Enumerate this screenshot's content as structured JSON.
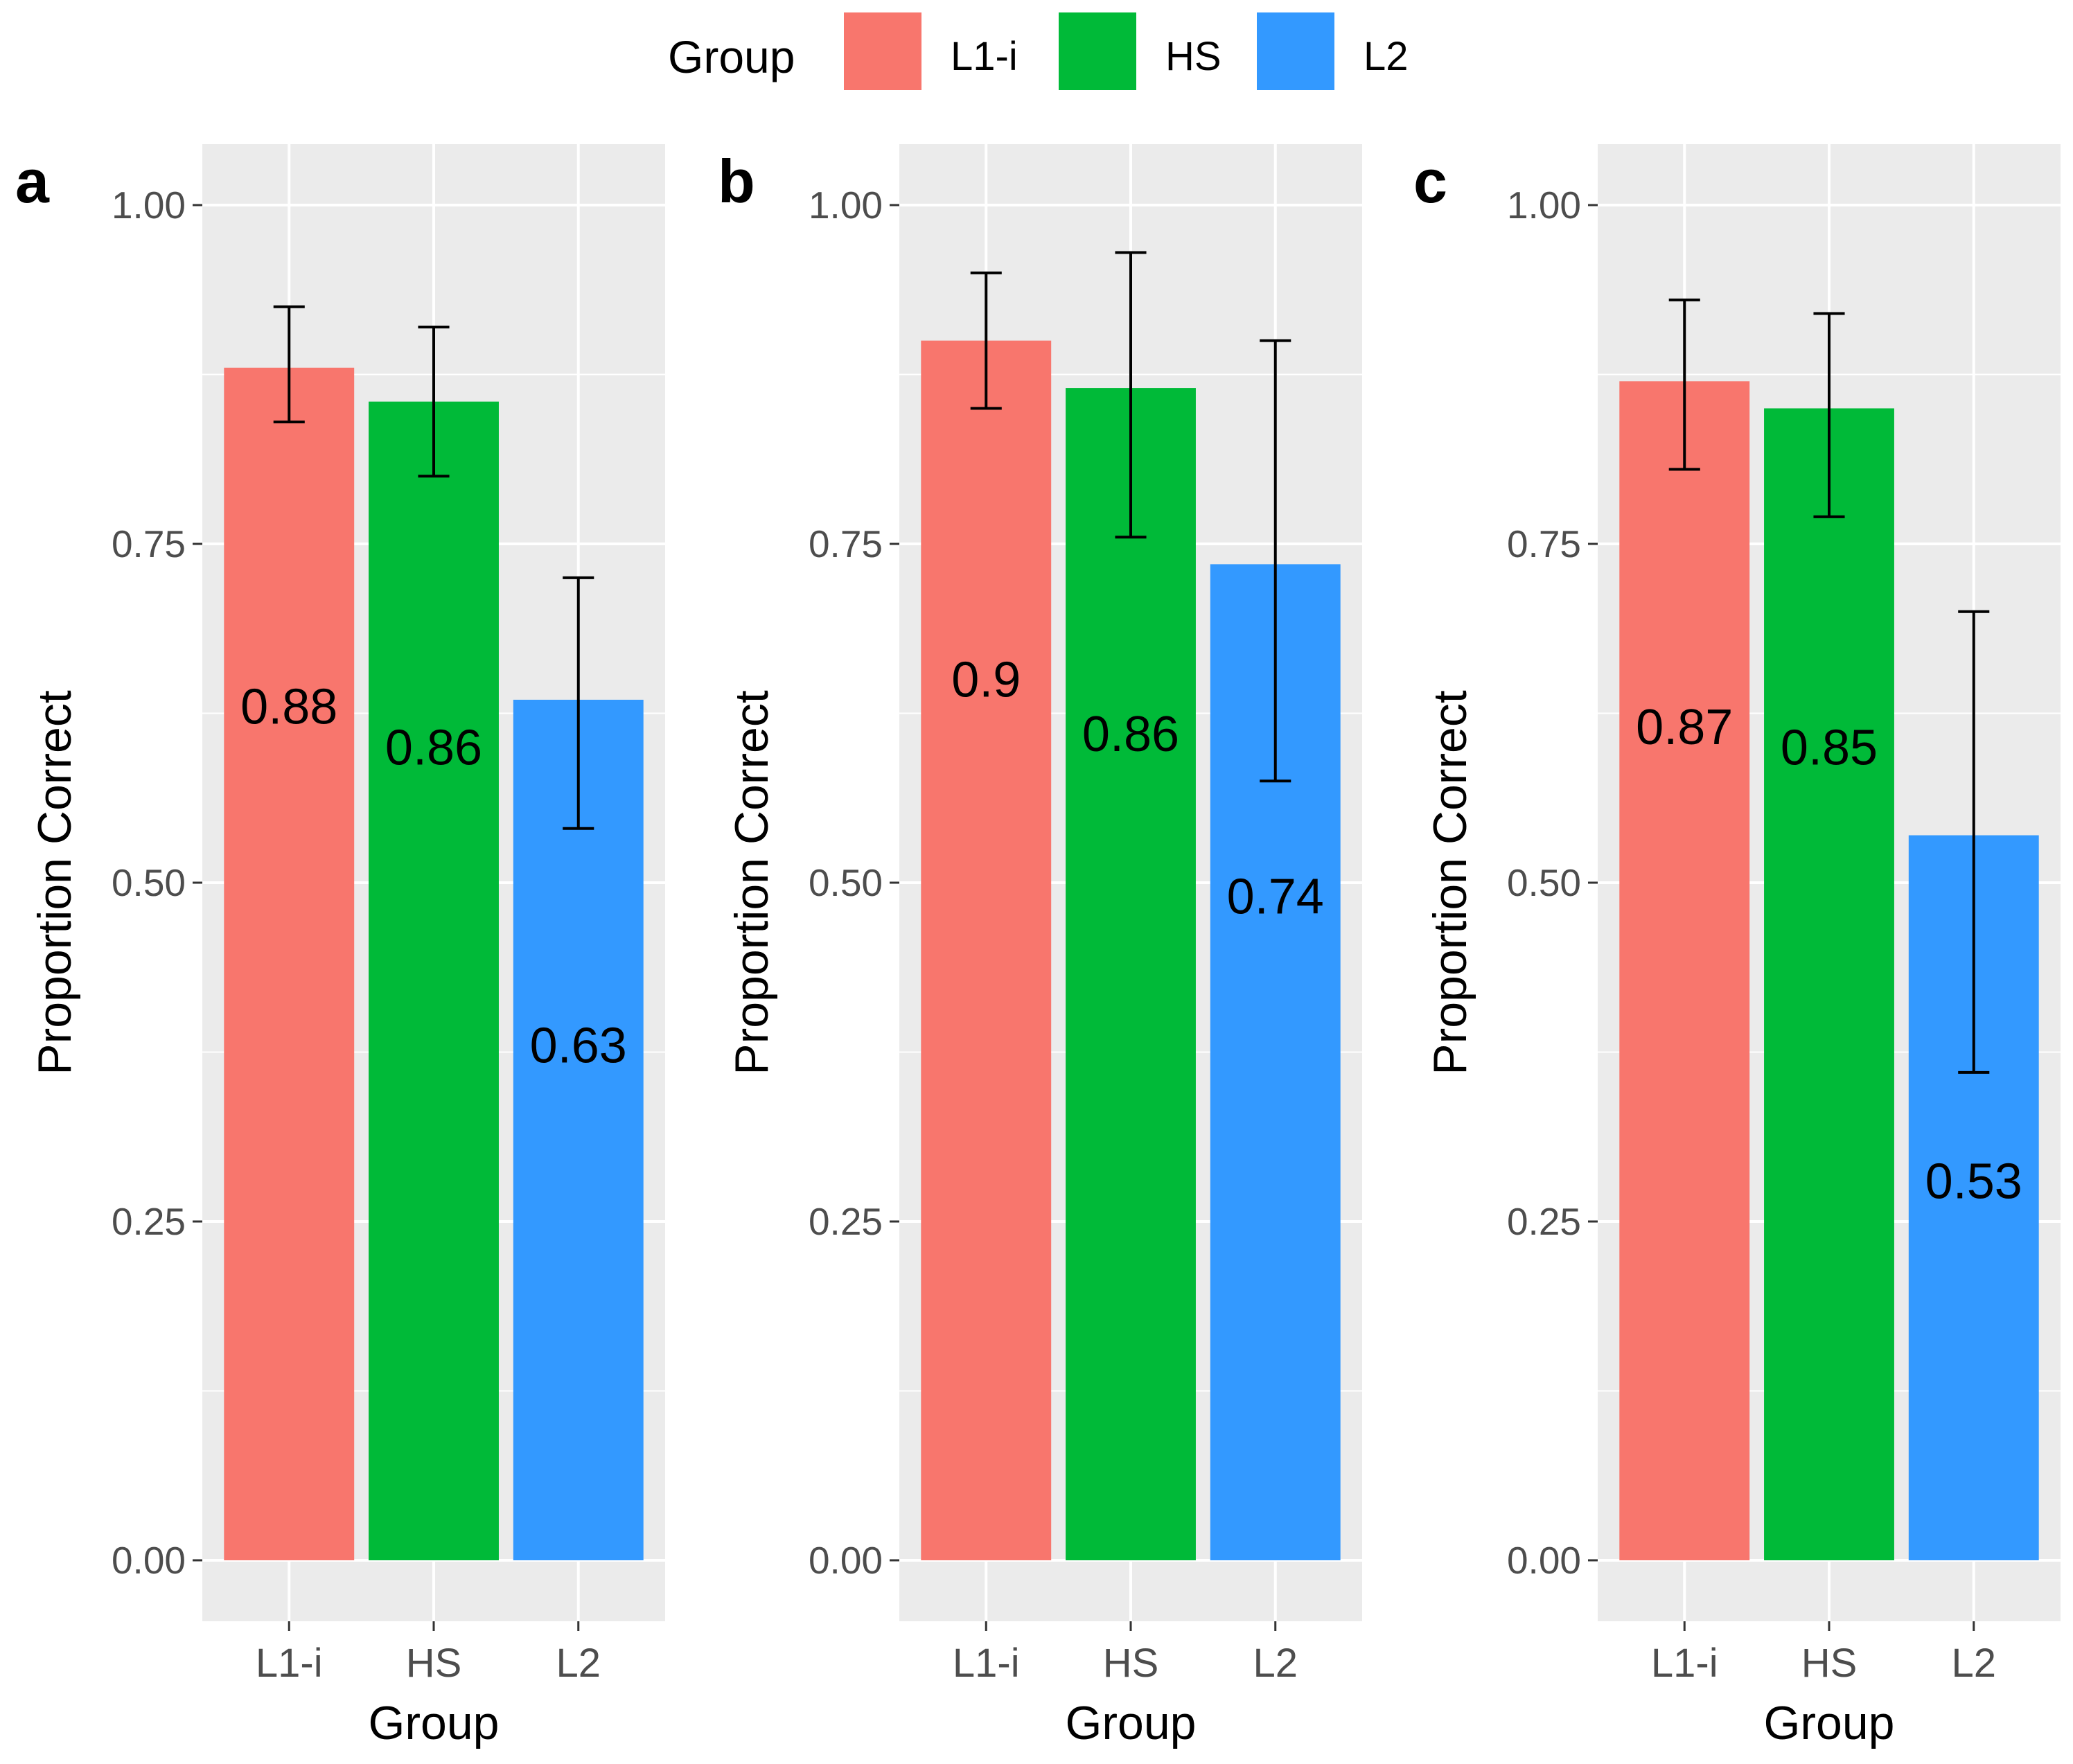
{
  "legend": {
    "title": "Group",
    "items": [
      {
        "label": "L1-i",
        "color": "#F8766D"
      },
      {
        "label": "HS",
        "color": "#00BA38"
      },
      {
        "label": "L2",
        "color": "#3399FF"
      }
    ]
  },
  "chart_data": [
    {
      "panel": "a",
      "type": "bar",
      "categories": [
        "L1-i",
        "HS",
        "L2"
      ],
      "values": [
        0.88,
        0.855,
        0.635
      ],
      "error_low": [
        0.84,
        0.8,
        0.54
      ],
      "error_high": [
        0.925,
        0.91,
        0.725
      ],
      "value_labels": [
        "0.88",
        "0.86",
        "0.63"
      ],
      "label_positions": [
        0.63,
        0.6,
        0.38
      ],
      "xlabel": "Group",
      "ylabel": "Proportion Correct",
      "ylim": [
        -0.045,
        1.045
      ],
      "yticks": [
        0.0,
        0.25,
        0.5,
        0.75,
        1.0
      ],
      "ytick_labels": [
        "0.00",
        "0.25",
        "0.50",
        "0.75",
        "1.00"
      ],
      "grid": true
    },
    {
      "panel": "b",
      "type": "bar",
      "categories": [
        "L1-i",
        "HS",
        "L2"
      ],
      "values": [
        0.9,
        0.865,
        0.735
      ],
      "error_low": [
        0.85,
        0.755,
        0.575
      ],
      "error_high": [
        0.95,
        0.965,
        0.9
      ],
      "value_labels": [
        "0.9",
        "0.86",
        "0.74"
      ],
      "label_positions": [
        0.65,
        0.61,
        0.49
      ],
      "xlabel": "Group",
      "ylabel": "Proportion Correct",
      "ylim": [
        -0.045,
        1.045
      ],
      "yticks": [
        0.0,
        0.25,
        0.5,
        0.75,
        1.0
      ],
      "ytick_labels": [
        "0.00",
        "0.25",
        "0.50",
        "0.75",
        "1.00"
      ],
      "grid": true
    },
    {
      "panel": "c",
      "type": "bar",
      "categories": [
        "L1-i",
        "HS",
        "L2"
      ],
      "values": [
        0.87,
        0.85,
        0.535
      ],
      "error_low": [
        0.805,
        0.77,
        0.36
      ],
      "error_high": [
        0.93,
        0.92,
        0.7
      ],
      "value_labels": [
        "0.87",
        "0.85",
        "0.53"
      ],
      "label_positions": [
        0.615,
        0.6,
        0.28
      ],
      "xlabel": "Group",
      "ylabel": "Proportion Correct",
      "ylim": [
        -0.045,
        1.045
      ],
      "yticks": [
        0.0,
        0.25,
        0.5,
        0.75,
        1.0
      ],
      "ytick_labels": [
        "0.00",
        "0.25",
        "0.50",
        "0.75",
        "1.00"
      ],
      "grid": true
    }
  ]
}
